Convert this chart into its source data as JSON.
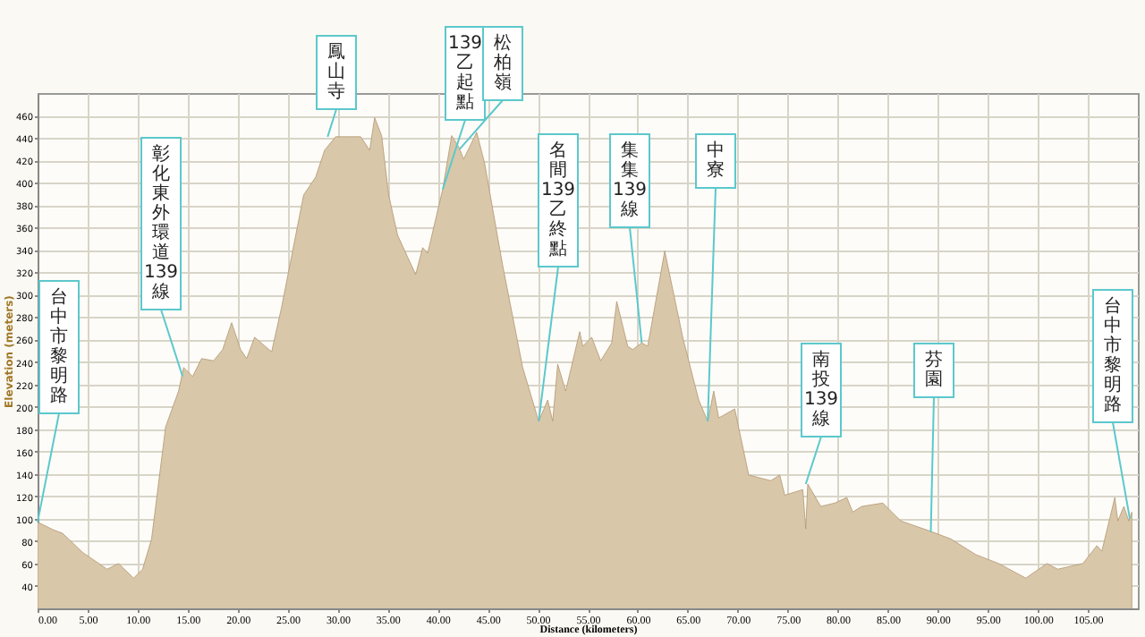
{
  "chart_data": {
    "type": "area",
    "xlabel": "Distance (kilometers)",
    "ylabel": "Elevation (meters)",
    "x": [
      0,
      1.6,
      2.5,
      4.5,
      6.95,
      8.1,
      9.6,
      10.5,
      11.4,
      12.8,
      14.1,
      14.6,
      15.5,
      16.4,
      17.6,
      18.5,
      19.4,
      20.3,
      20.9,
      21.7,
      23.4,
      24.4,
      26.6,
      27.8,
      28.7,
      29.8,
      32.3,
      33.2,
      33.7,
      34.4,
      35.1,
      36.0,
      37.8,
      38.5,
      39.0,
      40.5,
      41.4,
      42.1,
      42.6,
      43.9,
      44.7,
      46.5,
      48.5,
      50.1,
      51.0,
      51.5,
      52.0,
      52.8,
      54.2,
      54.5,
      55.4,
      56.3,
      57.4,
      57.9,
      59.0,
      59.5,
      60.4,
      61.0,
      62.7,
      64.5,
      66.1,
      67.0,
      67.6,
      68.1,
      69.7,
      71.1,
      73.3,
      74.2,
      74.7,
      76.5,
      76.8,
      77.0,
      78.3,
      79.7,
      80.9,
      81.5,
      82.4,
      84.5,
      86.3,
      88.9,
      91.3,
      93.8,
      96.1,
      98.8,
      100.9,
      102.0,
      104.5,
      105.9,
      106.4,
      107.7,
      108.0,
      108.6,
      109.1,
      109.4
    ],
    "series": [
      {
        "color": "#d9c7aa",
        "values": [
          97,
          90,
          87,
          70,
          55,
          60,
          47,
          55,
          82,
          182,
          214,
          235,
          227,
          243,
          241,
          251,
          275,
          251,
          243,
          262,
          249,
          289,
          389,
          405,
          429,
          441,
          441,
          429,
          458,
          442,
          389,
          353,
          318,
          342,
          337,
          394,
          442,
          432,
          421,
          445,
          417,
          326,
          235,
          187,
          206,
          187,
          238,
          214,
          267,
          254,
          262,
          241,
          257,
          294,
          254,
          251,
          257,
          254,
          339,
          262,
          206,
          187,
          214,
          190,
          198,
          139,
          134,
          139,
          121,
          126,
          91,
          131,
          111,
          114,
          119,
          106,
          111,
          114,
          98,
          90,
          82,
          68,
          60,
          47,
          60,
          55,
          60,
          76,
          71,
          119,
          98,
          111,
          98,
          106
        ]
      }
    ],
    "xlim": [
      0,
      110
    ],
    "ylim": [
      20,
      480
    ],
    "xticks": [
      {
        "value": 0,
        "label": "0.00"
      },
      {
        "value": 5,
        "label": "5.00"
      },
      {
        "value": 10,
        "label": "10.00"
      },
      {
        "value": 15,
        "label": "15.00"
      },
      {
        "value": 20,
        "label": "20.00"
      },
      {
        "value": 25,
        "label": "25.00"
      },
      {
        "value": 30,
        "label": "30.00"
      },
      {
        "value": 35,
        "label": "35.00"
      },
      {
        "value": 40,
        "label": "40.00"
      },
      {
        "value": 45,
        "label": "45.00"
      },
      {
        "value": 50,
        "label": "50.00"
      },
      {
        "value": 55,
        "label": "55.00"
      },
      {
        "value": 60,
        "label": "60.00"
      },
      {
        "value": 65,
        "label": "65.00"
      },
      {
        "value": 70,
        "label": "70.00"
      },
      {
        "value": 75,
        "label": "75.00"
      },
      {
        "value": 80,
        "label": "80.00"
      },
      {
        "value": 85,
        "label": "85.00"
      },
      {
        "value": 90,
        "label": "90.00"
      },
      {
        "value": 95,
        "label": "95.00"
      },
      {
        "value": 100,
        "label": "100.00"
      },
      {
        "value": 105,
        "label": "105.00"
      }
    ],
    "yticks": [
      40,
      60,
      80,
      100,
      120,
      140,
      160,
      180,
      200,
      220,
      240,
      260,
      280,
      300,
      320,
      340,
      360,
      380,
      400,
      420,
      440,
      460
    ],
    "grid": true,
    "annotations": [
      {
        "text": "台中市黎明路",
        "x": 0,
        "y": 97
      },
      {
        "text": "彰化東外環道139線",
        "x": 14.5,
        "y": 227
      },
      {
        "text": "鳳山寺",
        "x": 29,
        "y": 441
      },
      {
        "text": "139乙起點",
        "x": 40.5,
        "y": 394
      },
      {
        "text": "松柏嶺",
        "x": 42.2,
        "y": 430
      },
      {
        "text": "名間139乙終點",
        "x": 50.1,
        "y": 187
      },
      {
        "text": "集集139線",
        "x": 60.4,
        "y": 257
      },
      {
        "text": "中寮",
        "x": 67.0,
        "y": 187
      },
      {
        "text": "南投139線",
        "x": 76.8,
        "y": 131
      },
      {
        "text": "芬園",
        "x": 89.3,
        "y": 88
      },
      {
        "text": "台中市黎明路",
        "x": 109.2,
        "y": 100
      }
    ]
  }
}
